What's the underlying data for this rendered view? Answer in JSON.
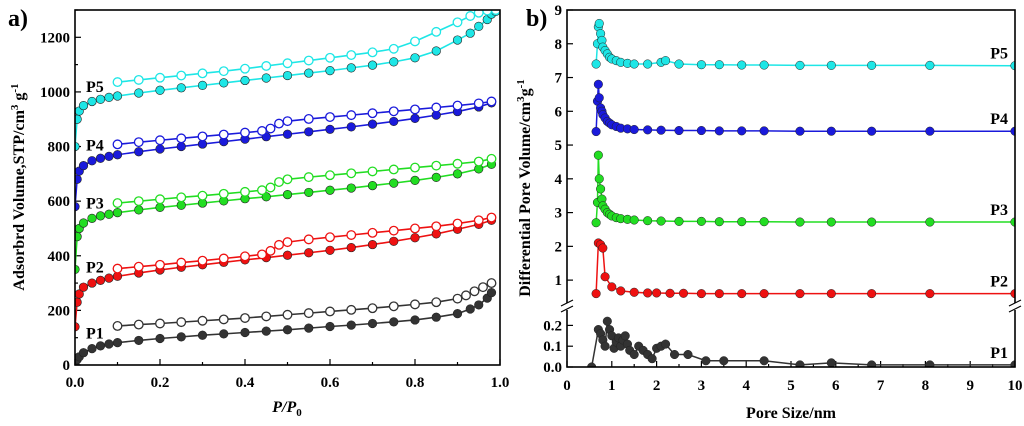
{
  "chart_data": [
    {
      "type": "line",
      "panel_label": "a)",
      "xlabel_italic": "P/P",
      "xlabel_sub": "0",
      "ylabel": "Adsorbrd Volume,STP/cm",
      "ylabel_sup1": "3",
      "ylabel_mid": " g",
      "ylabel_sup2": "-1",
      "xlim": [
        0.0,
        1.0
      ],
      "ylim": [
        0,
        1300
      ],
      "xticks": [
        0.0,
        0.2,
        0.4,
        0.6,
        0.8,
        1.0
      ],
      "xtick_labels": [
        "0.0",
        "0.2",
        "0.4",
        "0.6",
        "0.8",
        "1.0"
      ],
      "yticks": [
        0,
        200,
        400,
        600,
        800,
        1000,
        1200
      ],
      "ytick_labels": [
        "0",
        "200",
        "400",
        "600",
        "800",
        "1000",
        "1200"
      ],
      "series": [
        {
          "name": "P1",
          "color": "#333333",
          "adsorption": {
            "x": [
              0.0,
              0.005,
              0.01,
              0.02,
              0.04,
              0.06,
              0.08,
              0.1,
              0.15,
              0.2,
              0.25,
              0.3,
              0.35,
              0.4,
              0.45,
              0.5,
              0.55,
              0.6,
              0.65,
              0.7,
              0.75,
              0.8,
              0.85,
              0.9,
              0.93,
              0.95,
              0.97,
              0.98
            ],
            "y": [
              5,
              20,
              30,
              45,
              60,
              70,
              77,
              82,
              90,
              97,
              103,
              109,
              114,
              119,
              124,
              129,
              135,
              141,
              146,
              152,
              158,
              165,
              175,
              188,
              205,
              220,
              245,
              265
            ]
          },
          "desorption": {
            "x": [
              0.98,
              0.96,
              0.94,
              0.92,
              0.9,
              0.85,
              0.8,
              0.75,
              0.7,
              0.65,
              0.6,
              0.55,
              0.5,
              0.45,
              0.4,
              0.35,
              0.3,
              0.25,
              0.2,
              0.15,
              0.1
            ],
            "y": [
              300,
              285,
              270,
              255,
              243,
              230,
              222,
              215,
              208,
              202,
              196,
              190,
              184,
              178,
              172,
              167,
              162,
              157,
              152,
              148,
              143
            ]
          }
        },
        {
          "name": "P2",
          "color": "#ee1111",
          "adsorption": {
            "x": [
              0.0,
              0.005,
              0.01,
              0.02,
              0.04,
              0.06,
              0.08,
              0.1,
              0.15,
              0.2,
              0.25,
              0.3,
              0.35,
              0.4,
              0.45,
              0.5,
              0.55,
              0.6,
              0.65,
              0.7,
              0.75,
              0.8,
              0.85,
              0.9,
              0.95,
              0.98
            ],
            "y": [
              140,
              230,
              260,
              285,
              300,
              310,
              318,
              325,
              337,
              348,
              358,
              367,
              376,
              385,
              393,
              402,
              411,
              420,
              430,
              441,
              453,
              466,
              480,
              497,
              515,
              530
            ]
          },
          "desorption": {
            "x": [
              0.98,
              0.95,
              0.9,
              0.85,
              0.8,
              0.75,
              0.7,
              0.65,
              0.6,
              0.55,
              0.5,
              0.48,
              0.46,
              0.44,
              0.4,
              0.35,
              0.3,
              0.25,
              0.2,
              0.15,
              0.1
            ],
            "y": [
              540,
              530,
              518,
              508,
              500,
              492,
              484,
              476,
              468,
              460,
              450,
              440,
              418,
              405,
              398,
              390,
              382,
              375,
              367,
              360,
              353
            ]
          }
        },
        {
          "name": "P3",
          "color": "#22dd22",
          "adsorption": {
            "x": [
              0.0,
              0.005,
              0.01,
              0.02,
              0.04,
              0.06,
              0.08,
              0.1,
              0.15,
              0.2,
              0.25,
              0.3,
              0.35,
              0.4,
              0.45,
              0.5,
              0.55,
              0.6,
              0.65,
              0.7,
              0.75,
              0.8,
              0.85,
              0.9,
              0.95,
              0.98
            ],
            "y": [
              350,
              470,
              500,
              520,
              537,
              546,
              552,
              558,
              568,
              577,
              585,
              593,
              601,
              609,
              616,
              624,
              632,
              640,
              648,
              657,
              666,
              676,
              687,
              700,
              718,
              735
            ]
          },
          "desorption": {
            "x": [
              0.98,
              0.95,
              0.9,
              0.85,
              0.8,
              0.75,
              0.7,
              0.65,
              0.6,
              0.55,
              0.5,
              0.48,
              0.46,
              0.44,
              0.4,
              0.35,
              0.3,
              0.25,
              0.2,
              0.15,
              0.1
            ],
            "y": [
              755,
              745,
              737,
              730,
              723,
              716,
              709,
              702,
              695,
              688,
              680,
              670,
              650,
              640,
              634,
              627,
              620,
              614,
              607,
              600,
              593
            ]
          }
        },
        {
          "name": "P4",
          "color": "#1a1adb",
          "adsorption": {
            "x": [
              0.0,
              0.005,
              0.01,
              0.02,
              0.04,
              0.06,
              0.08,
              0.1,
              0.15,
              0.2,
              0.25,
              0.3,
              0.35,
              0.4,
              0.45,
              0.5,
              0.55,
              0.6,
              0.65,
              0.7,
              0.75,
              0.8,
              0.85,
              0.9,
              0.95,
              0.98
            ],
            "y": [
              580,
              680,
              710,
              730,
              748,
              757,
              764,
              770,
              781,
              791,
              800,
              809,
              818,
              827,
              836,
              845,
              854,
              863,
              872,
              882,
              892,
              903,
              915,
              928,
              945,
              960
            ]
          },
          "desorption": {
            "x": [
              0.98,
              0.95,
              0.9,
              0.85,
              0.8,
              0.75,
              0.7,
              0.65,
              0.6,
              0.55,
              0.5,
              0.48,
              0.46,
              0.44,
              0.4,
              0.35,
              0.3,
              0.25,
              0.2,
              0.15,
              0.1
            ],
            "y": [
              965,
              958,
              950,
              943,
              936,
              929,
              922,
              915,
              908,
              901,
              893,
              884,
              866,
              857,
              851,
              844,
              837,
              830,
              823,
              816,
              808
            ]
          }
        },
        {
          "name": "P5",
          "color": "#1ee6e6",
          "adsorption": {
            "x": [
              0.0,
              0.005,
              0.01,
              0.02,
              0.04,
              0.06,
              0.08,
              0.1,
              0.15,
              0.2,
              0.25,
              0.3,
              0.35,
              0.4,
              0.45,
              0.5,
              0.55,
              0.6,
              0.65,
              0.7,
              0.75,
              0.8,
              0.85,
              0.9,
              0.93,
              0.95,
              0.97,
              0.98,
              0.99
            ],
            "y": [
              800,
              900,
              930,
              950,
              965,
              973,
              980,
              985,
              996,
              1006,
              1015,
              1024,
              1033,
              1042,
              1051,
              1060,
              1069,
              1078,
              1088,
              1098,
              1110,
              1125,
              1150,
              1190,
              1215,
              1240,
              1265,
              1285,
              1295
            ]
          },
          "desorption": {
            "x": [
              0.99,
              0.97,
              0.95,
              0.93,
              0.9,
              0.85,
              0.8,
              0.75,
              0.7,
              0.65,
              0.6,
              0.55,
              0.5,
              0.45,
              0.4,
              0.35,
              0.3,
              0.25,
              0.2,
              0.15,
              0.1
            ],
            "y": [
              1300,
              1298,
              1290,
              1278,
              1255,
              1220,
              1185,
              1158,
              1145,
              1135,
              1125,
              1115,
              1105,
              1095,
              1085,
              1076,
              1068,
              1060,
              1052,
              1044,
              1036
            ]
          }
        }
      ]
    },
    {
      "type": "line",
      "panel_label": "b)",
      "xlabel": "Pore Size/nm",
      "ylabel": "Differential Pore Volume/cm",
      "ylabel_sup1": "3",
      "ylabel_mid": "g",
      "ylabel_sup2": "-1",
      "axis_break_between": [
        0.2,
        0.5
      ],
      "xlim": [
        0,
        10
      ],
      "ylim_lower": [
        0,
        0.25
      ],
      "ylim_upper": [
        0.5,
        9
      ],
      "xticks": [
        0,
        1,
        2,
        3,
        4,
        5,
        6,
        7,
        8,
        9,
        10
      ],
      "xtick_labels": [
        "0",
        "1",
        "2",
        "3",
        "4",
        "5",
        "6",
        "7",
        "8",
        "9",
        "10"
      ],
      "yticks_lower": [
        0.0,
        0.1,
        0.2
      ],
      "ytick_labels_lower": [
        "0.0",
        "0.1",
        "0.2"
      ],
      "yticks_upper": [
        1,
        2,
        3,
        4,
        5,
        6,
        7,
        8,
        9
      ],
      "ytick_labels_upper": [
        "1",
        "2",
        "3",
        "4",
        "5",
        "6",
        "7",
        "8",
        "9"
      ],
      "series": [
        {
          "name": "P1",
          "color": "#333333",
          "x": [
            0.55,
            0.7,
            0.75,
            0.8,
            0.85,
            0.9,
            0.95,
            1.0,
            1.05,
            1.1,
            1.15,
            1.2,
            1.25,
            1.3,
            1.35,
            1.4,
            1.5,
            1.6,
            1.7,
            1.8,
            1.9,
            2.0,
            2.1,
            2.2,
            2.4,
            2.7,
            3.1,
            3.5,
            4.4,
            5.2,
            5.9,
            6.8,
            8.1,
            10.0
          ],
          "y": [
            0.0,
            0.18,
            0.16,
            0.13,
            0.1,
            0.22,
            0.18,
            0.15,
            0.09,
            0.12,
            0.14,
            0.1,
            0.13,
            0.15,
            0.11,
            0.08,
            0.06,
            0.1,
            0.08,
            0.06,
            0.04,
            0.09,
            0.1,
            0.11,
            0.06,
            0.06,
            0.03,
            0.03,
            0.03,
            0.01,
            0.02,
            0.01,
            0.01,
            0.01
          ]
        },
        {
          "name": "P2",
          "color": "#ee1111",
          "x": [
            0.65,
            0.7,
            0.75,
            0.8,
            0.85,
            1.0,
            1.2,
            1.5,
            1.8,
            2.0,
            2.3,
            2.6,
            3.0,
            3.4,
            3.9,
            4.4,
            5.2,
            5.9,
            6.8,
            8.1,
            10.0
          ],
          "y": [
            0.6,
            2.1,
            2.05,
            1.95,
            1.1,
            0.8,
            0.68,
            0.64,
            0.62,
            0.62,
            0.61,
            0.61,
            0.6,
            0.6,
            0.6,
            0.6,
            0.6,
            0.6,
            0.6,
            0.6,
            0.6
          ]
        },
        {
          "name": "P3",
          "color": "#22dd22",
          "x": [
            0.65,
            0.68,
            0.7,
            0.72,
            0.75,
            0.78,
            0.8,
            0.85,
            0.9,
            0.95,
            1.0,
            1.1,
            1.2,
            1.35,
            1.5,
            1.8,
            2.1,
            2.5,
            3.0,
            3.4,
            3.9,
            4.4,
            5.2,
            5.9,
            6.8,
            8.1,
            10.0
          ],
          "y": [
            2.7,
            3.3,
            4.7,
            4.0,
            3.7,
            3.4,
            3.2,
            3.1,
            3.0,
            2.95,
            2.9,
            2.85,
            2.82,
            2.8,
            2.78,
            2.76,
            2.75,
            2.74,
            2.74,
            2.73,
            2.73,
            2.73,
            2.72,
            2.72,
            2.72,
            2.72,
            2.72
          ]
        },
        {
          "name": "P4",
          "color": "#1a1adb",
          "x": [
            0.65,
            0.68,
            0.7,
            0.72,
            0.75,
            0.78,
            0.8,
            0.85,
            0.9,
            0.95,
            1.0,
            1.1,
            1.2,
            1.35,
            1.5,
            1.8,
            2.1,
            2.5,
            3.0,
            3.4,
            3.9,
            4.4,
            5.2,
            5.9,
            6.8,
            8.1,
            10.0
          ],
          "y": [
            5.4,
            6.3,
            6.8,
            6.4,
            6.1,
            6.0,
            5.9,
            5.8,
            5.7,
            5.65,
            5.6,
            5.55,
            5.5,
            5.48,
            5.46,
            5.45,
            5.44,
            5.43,
            5.43,
            5.42,
            5.42,
            5.42,
            5.41,
            5.41,
            5.41,
            5.41,
            5.41
          ]
        },
        {
          "name": "P5",
          "color": "#1ee6e6",
          "x": [
            0.65,
            0.68,
            0.7,
            0.72,
            0.75,
            0.78,
            0.8,
            0.85,
            0.9,
            0.95,
            1.0,
            1.1,
            1.2,
            1.35,
            1.5,
            1.8,
            2.1,
            2.2,
            2.5,
            3.0,
            3.4,
            3.9,
            4.4,
            5.2,
            5.9,
            6.8,
            8.1,
            10.0
          ],
          "y": [
            7.4,
            8.0,
            8.5,
            8.6,
            8.3,
            8.1,
            7.9,
            7.8,
            7.7,
            7.6,
            7.55,
            7.5,
            7.45,
            7.42,
            7.4,
            7.4,
            7.45,
            7.5,
            7.4,
            7.38,
            7.38,
            7.37,
            7.37,
            7.36,
            7.36,
            7.36,
            7.36,
            7.35
          ]
        }
      ]
    }
  ]
}
